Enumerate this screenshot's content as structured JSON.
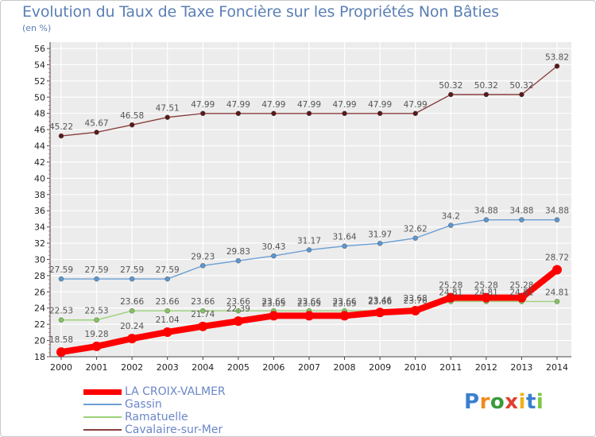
{
  "header": {
    "title": "Evolution du Taux de Taxe Foncière sur les Propriétés Non Bâties",
    "unit": "(en %)"
  },
  "logo": {
    "text": "Proxiti"
  },
  "colors": {
    "grid": "#ffffff",
    "plot_bg": "#ececec",
    "axis": "#444444",
    "tick_text": "#222222",
    "label_text": "#555555"
  },
  "chart_data": {
    "type": "line",
    "title": "Evolution du Taux de Taxe Foncière sur les Propriétés Non Bâties",
    "ylabel": "(en %)",
    "xlabel": "",
    "x": [
      "2000",
      "2001",
      "2002",
      "2003",
      "2004",
      "2005",
      "2006",
      "2007",
      "2008",
      "2009",
      "2010",
      "2011",
      "2012",
      "2013",
      "2014"
    ],
    "ylim": [
      18,
      56
    ],
    "yticks": [
      18,
      20,
      22,
      24,
      26,
      28,
      30,
      32,
      34,
      36,
      38,
      40,
      42,
      44,
      46,
      48,
      50,
      52,
      54,
      56
    ],
    "grid": true,
    "legend_position": "bottom-left",
    "series": [
      {
        "name": "LA CROIX-VALMER",
        "color": "#ff0000",
        "marker_color": "#ff0000",
        "line_width": 8,
        "marker_r": 6,
        "values": [
          18.58,
          19.28,
          20.24,
          21.04,
          21.74,
          22.39,
          23.05,
          23.05,
          23.05,
          23.46,
          23.68,
          25.28,
          25.28,
          25.28,
          28.72
        ],
        "labels": [
          "18.58",
          "19.28",
          "20.24",
          "21.04",
          "21.74",
          "22.39",
          "23.05",
          "23.05",
          "23.05",
          "23.46",
          "23.68",
          "25.28",
          "25.28",
          "25.28",
          "28.72"
        ]
      },
      {
        "name": "Gassin",
        "color": "#6a9fd4",
        "marker_color": "#5b97d0",
        "line_width": 1.4,
        "marker_r": 3,
        "values": [
          27.59,
          27.59,
          27.59,
          27.59,
          29.23,
          29.83,
          30.43,
          31.17,
          31.64,
          31.97,
          32.62,
          34.2,
          34.88,
          34.88,
          34.88
        ],
        "labels": [
          "27.59",
          "27.59",
          "27.59",
          "27.59",
          "29.23",
          "29.83",
          "30.43",
          "31.17",
          "31.64",
          "31.97",
          "32.62",
          "34.2",
          "34.88",
          "34.88",
          "34.88"
        ]
      },
      {
        "name": "Ramatuelle",
        "color": "#9bd279",
        "marker_color": "#82c65c",
        "line_width": 1.4,
        "marker_r": 3,
        "values": [
          22.53,
          22.53,
          23.66,
          23.66,
          23.66,
          23.66,
          23.66,
          23.66,
          23.66,
          23.66,
          23.76,
          24.81,
          24.81,
          24.81,
          24.81
        ],
        "labels": [
          "22.53",
          "22.53",
          "23.66",
          "23.66",
          "23.66",
          "23.66",
          "23.66",
          "23.66",
          "23.66",
          "23.66",
          "23.76",
          "24.81",
          "24.81",
          "24.81",
          "24.81"
        ]
      },
      {
        "name": "Cavalaire-sur-Mer",
        "color": "#8a3e3e",
        "marker_color": "#5a1818",
        "line_width": 1.4,
        "marker_r": 3,
        "values": [
          45.22,
          45.67,
          46.58,
          47.51,
          47.99,
          47.99,
          47.99,
          47.99,
          47.99,
          47.99,
          47.99,
          50.32,
          50.32,
          50.32,
          53.82
        ],
        "labels": [
          "45.22",
          "45.67",
          "46.58",
          "47.51",
          "47.99",
          "47.99",
          "47.99",
          "47.99",
          "47.99",
          "47.99",
          "47.99",
          "50.32",
          "50.32",
          "50.32",
          "53.82"
        ]
      }
    ]
  }
}
